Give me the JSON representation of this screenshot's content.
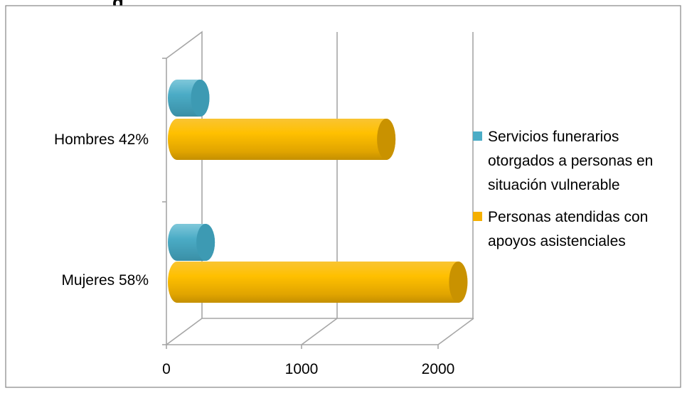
{
  "title_fragment": "g",
  "chart_data": {
    "type": "bar",
    "orientation": "horizontal",
    "style": "3d-cylinder",
    "categories": [
      "Hombres 42%",
      "Mujeres 58%"
    ],
    "series": [
      {
        "name": "Servicios funerarios otorgados a personas en situación vulnerable",
        "color": "#4bacc6",
        "values": [
          170,
          210
        ]
      },
      {
        "name": "Personas atendidas con apoyos asistenciales",
        "color": "#f5b000",
        "values": [
          1540,
          2070
        ]
      }
    ],
    "xticks": [
      0,
      1000,
      2000
    ],
    "xlim": [
      0,
      2000
    ],
    "grid": true,
    "legend_position": "right",
    "legend_lines": [
      [
        "Servicios funerarios",
        "otorgados a personas en",
        "situación vulnerable"
      ],
      [
        "Personas atendidas con",
        "apoyos asistenciales"
      ]
    ]
  }
}
